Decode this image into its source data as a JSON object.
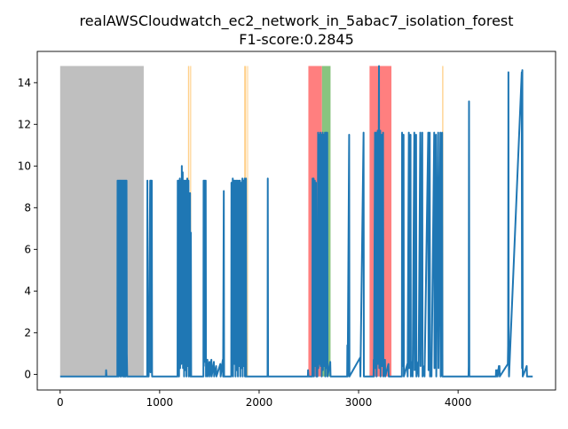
{
  "chart_data": {
    "type": "line",
    "title_line1": "realAWSCloudwatch_ec2_network_in_5abac7_isolation_forest",
    "title_line2": "F1-score:0.2845",
    "xlim": [
      -230,
      4980
    ],
    "ylim": [
      -0.75,
      15.5
    ],
    "xticks": [
      0,
      1000,
      2000,
      3000,
      4000
    ],
    "xtick_labels": [
      "0",
      "1000",
      "2000",
      "3000",
      "4000"
    ],
    "yticks": [
      0,
      2,
      4,
      6,
      8,
      10,
      12,
      14
    ],
    "ytick_labels": [
      "0",
      "2",
      "4",
      "6",
      "8",
      "10",
      "12",
      "14"
    ],
    "colors": {
      "series": "#1f77b4",
      "gray_region": "#bfbfbf",
      "orange_region": "#ffd08a",
      "red_region": "#ff7f7f",
      "green_region": "#88c47f"
    },
    "regions": [
      {
        "kind": "gray",
        "x0": 0,
        "x1": 840,
        "y0": -0.1,
        "y1": 14.8
      },
      {
        "kind": "orange",
        "x0": 1285,
        "x1": 1298,
        "y0": -0.1,
        "y1": 14.8
      },
      {
        "kind": "orange",
        "x0": 1307,
        "x1": 1317,
        "y0": -0.1,
        "y1": 14.8
      },
      {
        "kind": "orange",
        "x0": 1850,
        "x1": 1870,
        "y0": -0.1,
        "y1": 14.8
      },
      {
        "kind": "orange",
        "x0": 1880,
        "x1": 1888,
        "y0": -0.1,
        "y1": 14.8
      },
      {
        "kind": "red",
        "x0": 2495,
        "x1": 2632,
        "y0": -0.1,
        "y1": 14.8
      },
      {
        "kind": "green",
        "x0": 2632,
        "x1": 2718,
        "y0": -0.1,
        "y1": 14.8
      },
      {
        "kind": "red",
        "x0": 3110,
        "x1": 3330,
        "y0": -0.1,
        "y1": 14.8
      },
      {
        "kind": "orange",
        "x0": 3840,
        "x1": 3852,
        "y0": -0.1,
        "y1": 14.8
      }
    ],
    "series": [
      {
        "values": [
          [
            0,
            -0.1
          ],
          [
            460,
            -0.1
          ],
          [
            462,
            0.2
          ],
          [
            466,
            -0.1
          ],
          [
            575,
            -0.1
          ],
          [
            577,
            9.3
          ],
          [
            579,
            -0.1
          ],
          [
            587,
            9.3
          ],
          [
            589,
            -0.1
          ],
          [
            596,
            9.3
          ],
          [
            598,
            0.5
          ],
          [
            604,
            9.3
          ],
          [
            606,
            -0.1
          ],
          [
            613,
            9.3
          ],
          [
            615,
            -0.1
          ],
          [
            622,
            9.3
          ],
          [
            624,
            0.3
          ],
          [
            631,
            9.3
          ],
          [
            633,
            -0.1
          ],
          [
            640,
            9.3
          ],
          [
            642,
            -0.1
          ],
          [
            649,
            9.3
          ],
          [
            651,
            -0.1
          ],
          [
            658,
            9.3
          ],
          [
            660,
            -0.1
          ],
          [
            667,
            9.3
          ],
          [
            670,
            1.0
          ],
          [
            674,
            -0.1
          ],
          [
            875,
            -0.1
          ],
          [
            877,
            9.3
          ],
          [
            879,
            -0.1
          ],
          [
            887,
            0.8
          ],
          [
            890,
            -0.1
          ],
          [
            905,
            9.3
          ],
          [
            908,
            0.1
          ],
          [
            913,
            9.3
          ],
          [
            916,
            0.2
          ],
          [
            921,
            9.3
          ],
          [
            924,
            -0.1
          ],
          [
            1180,
            -0.1
          ],
          [
            1182,
            9.3
          ],
          [
            1184,
            0.2
          ],
          [
            1192,
            9.3
          ],
          [
            1195,
            -0.1
          ],
          [
            1203,
            9.4
          ],
          [
            1206,
            0.3
          ],
          [
            1214,
            9.3
          ],
          [
            1217,
            0.5
          ],
          [
            1223,
            10.0
          ],
          [
            1226,
            0.6
          ],
          [
            1232,
            9.7
          ],
          [
            1235,
            0.3
          ],
          [
            1244,
            9.3
          ],
          [
            1246,
            -0.1
          ],
          [
            1255,
            9.3
          ],
          [
            1258,
            0.2
          ],
          [
            1267,
            9.3
          ],
          [
            1270,
            -0.1
          ],
          [
            1278,
            9.4
          ],
          [
            1281,
            0.4
          ],
          [
            1290,
            9.3
          ],
          [
            1293,
            -0.1
          ],
          [
            1306,
            8.7
          ],
          [
            1309,
            -0.1
          ],
          [
            1314,
            6.8
          ],
          [
            1317,
            -0.1
          ],
          [
            1440,
            -0.1
          ],
          [
            1442,
            9.3
          ],
          [
            1444,
            0.4
          ],
          [
            1452,
            9.3
          ],
          [
            1455,
            0.6
          ],
          [
            1463,
            9.3
          ],
          [
            1466,
            -0.1
          ],
          [
            1480,
            0.7
          ],
          [
            1483,
            -0.1
          ],
          [
            1500,
            0.6
          ],
          [
            1503,
            -0.1
          ],
          [
            1520,
            0.7
          ],
          [
            1523,
            -0.1
          ],
          [
            1545,
            0.6
          ],
          [
            1548,
            -0.1
          ],
          [
            1568,
            0.4
          ],
          [
            1571,
            -0.1
          ],
          [
            1610,
            0.5
          ],
          [
            1613,
            -0.1
          ],
          [
            1635,
            0.7
          ],
          [
            1638,
            -0.1
          ],
          [
            1645,
            8.8
          ],
          [
            1648,
            -0.1
          ],
          [
            1720,
            -0.1
          ],
          [
            1722,
            9.2
          ],
          [
            1725,
            0.3
          ],
          [
            1735,
            9.4
          ],
          [
            1738,
            -0.1
          ],
          [
            1748,
            9.3
          ],
          [
            1751,
            0.5
          ],
          [
            1760,
            9.3
          ],
          [
            1763,
            -0.1
          ],
          [
            1772,
            9.3
          ],
          [
            1775,
            0.2
          ],
          [
            1784,
            9.3
          ],
          [
            1787,
            -0.1
          ],
          [
            1796,
            9.3
          ],
          [
            1799,
            0.4
          ],
          [
            1808,
            9.3
          ],
          [
            1811,
            -0.1
          ],
          [
            1820,
            9.2
          ],
          [
            1823,
            0.3
          ],
          [
            1832,
            9.4
          ],
          [
            1835,
            -0.1
          ],
          [
            1844,
            9.3
          ],
          [
            1847,
            0.4
          ],
          [
            1855,
            9.4
          ],
          [
            1858,
            -0.1
          ],
          [
            1868,
            9.4
          ],
          [
            1871,
            -0.1
          ],
          [
            2085,
            -0.1
          ],
          [
            2087,
            9.4
          ],
          [
            2090,
            -0.1
          ],
          [
            2490,
            -0.1
          ],
          [
            2492,
            0.2
          ],
          [
            2496,
            -0.1
          ],
          [
            2535,
            -0.1
          ],
          [
            2537,
            9.4
          ],
          [
            2540,
            0.3
          ],
          [
            2548,
            9.4
          ],
          [
            2551,
            -0.1
          ],
          [
            2560,
            9.3
          ],
          [
            2563,
            0.4
          ],
          [
            2572,
            9.2
          ],
          [
            2575,
            -0.1
          ],
          [
            2583,
            6.4
          ],
          [
            2586,
            -0.1
          ],
          [
            2593,
            11.6
          ],
          [
            2596,
            0.3
          ],
          [
            2604,
            11.5
          ],
          [
            2607,
            0.5
          ],
          [
            2615,
            11.6
          ],
          [
            2618,
            0.4
          ],
          [
            2626,
            11.5
          ],
          [
            2629,
            -0.1
          ],
          [
            2638,
            11.6
          ],
          [
            2641,
            0.2
          ],
          [
            2650,
            11.5
          ],
          [
            2653,
            0.4
          ],
          [
            2662,
            11.6
          ],
          [
            2665,
            -0.1
          ],
          [
            2674,
            11.6
          ],
          [
            2677,
            0.3
          ],
          [
            2685,
            11.6
          ],
          [
            2688,
            -0.1
          ],
          [
            2715,
            0.6
          ],
          [
            2718,
            -0.1
          ],
          [
            2885,
            -0.1
          ],
          [
            2887,
            1.4
          ],
          [
            2890,
            -0.1
          ],
          [
            2905,
            11.5
          ],
          [
            2908,
            -0.1
          ],
          [
            3015,
            0.8
          ],
          [
            3018,
            -0.1
          ],
          [
            3050,
            11.6
          ],
          [
            3053,
            -0.1
          ],
          [
            3150,
            -0.1
          ],
          [
            3152,
            0.7
          ],
          [
            3155,
            -0.1
          ],
          [
            3165,
            11.6
          ],
          [
            3168,
            0.3
          ],
          [
            3178,
            11.6
          ],
          [
            3181,
            -0.1
          ],
          [
            3192,
            11.7
          ],
          [
            3195,
            0.5
          ],
          [
            3205,
            14.8
          ],
          [
            3208,
            0.3
          ],
          [
            3218,
            11.7
          ],
          [
            3221,
            -0.1
          ],
          [
            3232,
            11.5
          ],
          [
            3235,
            0.4
          ],
          [
            3246,
            11.6
          ],
          [
            3249,
            -0.1
          ],
          [
            3265,
            0.7
          ],
          [
            3268,
            -0.1
          ],
          [
            3300,
            0.5
          ],
          [
            3303,
            -0.1
          ],
          [
            3435,
            -0.1
          ],
          [
            3437,
            11.6
          ],
          [
            3440,
            0.4
          ],
          [
            3452,
            11.5
          ],
          [
            3455,
            -0.1
          ],
          [
            3490,
            0.5
          ],
          [
            3493,
            -0.1
          ],
          [
            3505,
            11.6
          ],
          [
            3508,
            0.3
          ],
          [
            3522,
            11.5
          ],
          [
            3525,
            -0.1
          ],
          [
            3540,
            0.6
          ],
          [
            3543,
            -0.1
          ],
          [
            3560,
            11.6
          ],
          [
            3563,
            0.2
          ],
          [
            3578,
            11.5
          ],
          [
            3581,
            -0.1
          ],
          [
            3600,
            0.6
          ],
          [
            3603,
            -0.1
          ],
          [
            3620,
            11.6
          ],
          [
            3623,
            0.4
          ],
          [
            3640,
            11.6
          ],
          [
            3643,
            -0.1
          ],
          [
            3660,
            0.4
          ],
          [
            3663,
            -0.1
          ],
          [
            3700,
            11.6
          ],
          [
            3703,
            0.2
          ],
          [
            3715,
            11.6
          ],
          [
            3718,
            -0.1
          ],
          [
            3730,
            0.5
          ],
          [
            3733,
            -0.1
          ],
          [
            3760,
            11.6
          ],
          [
            3763,
            0.3
          ],
          [
            3778,
            11.5
          ],
          [
            3781,
            -0.1
          ],
          [
            3800,
            11.6
          ],
          [
            3803,
            0.3
          ],
          [
            3822,
            11.6
          ],
          [
            3825,
            -0.1
          ],
          [
            3840,
            11.6
          ],
          [
            3843,
            -0.1
          ],
          [
            4105,
            -0.1
          ],
          [
            4107,
            0.4
          ],
          [
            4110,
            13.1
          ],
          [
            4113,
            -0.1
          ],
          [
            4380,
            -0.1
          ],
          [
            4382,
            0.2
          ],
          [
            4385,
            -0.1
          ],
          [
            4395,
            0.2
          ],
          [
            4398,
            -0.1
          ],
          [
            4410,
            0.4
          ],
          [
            4413,
            0.3
          ],
          [
            4416,
            0.4
          ],
          [
            4419,
            -0.1
          ],
          [
            4500,
            0.5
          ],
          [
            4503,
            1.4
          ],
          [
            4506,
            14.5
          ],
          [
            4509,
            0.8
          ],
          [
            4512,
            -0.1
          ],
          [
            4640,
            14.5
          ],
          [
            4643,
            0.3
          ],
          [
            4646,
            14.6
          ],
          [
            4650,
            -0.1
          ],
          [
            4690,
            0.4
          ],
          [
            4693,
            -0.1
          ],
          [
            4750,
            -0.1
          ]
        ]
      }
    ]
  }
}
